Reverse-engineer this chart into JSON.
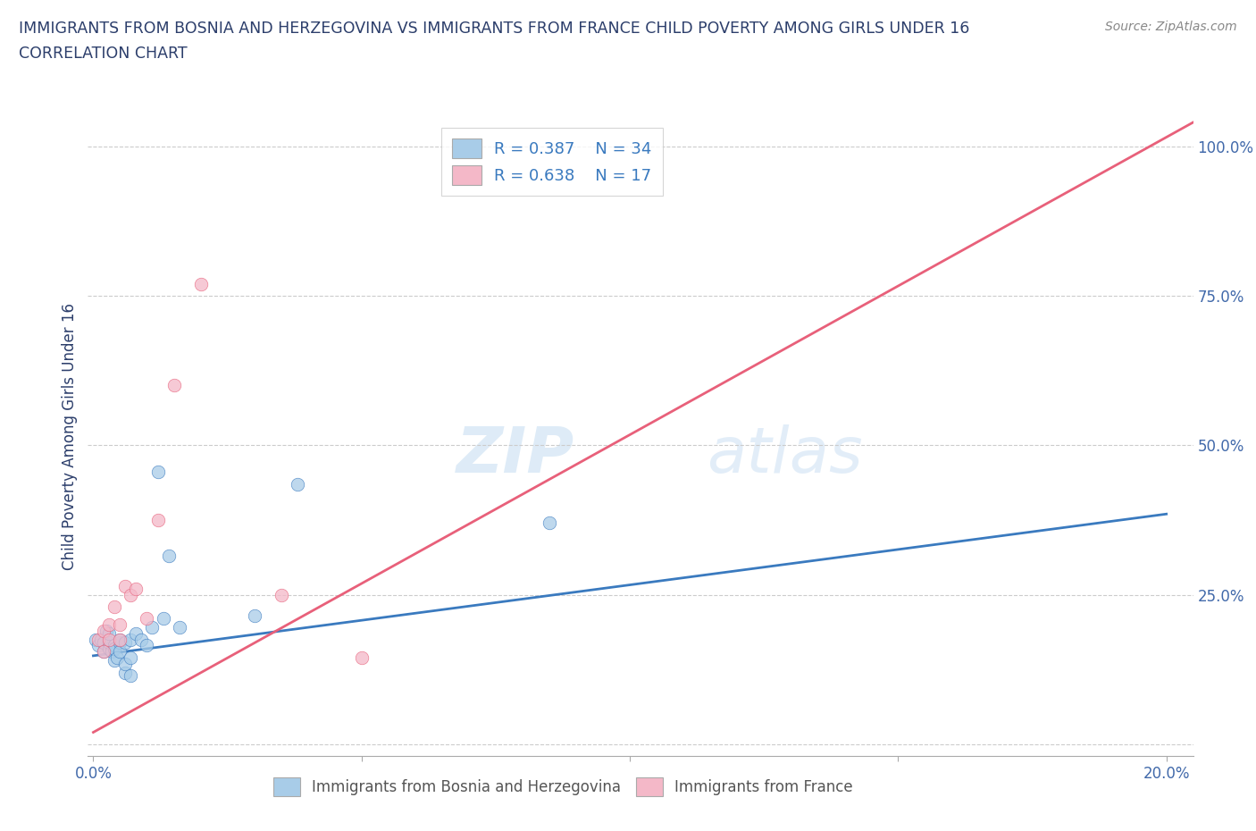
{
  "title_line1": "IMMIGRANTS FROM BOSNIA AND HERZEGOVINA VS IMMIGRANTS FROM FRANCE CHILD POVERTY AMONG GIRLS UNDER 16",
  "title_line2": "CORRELATION CHART",
  "source": "Source: ZipAtlas.com",
  "ylabel": "Child Poverty Among Girls Under 16",
  "xlim": [
    -0.001,
    0.205
  ],
  "ylim": [
    -0.02,
    1.05
  ],
  "color_blue": "#a8cce8",
  "color_pink": "#f4b8c8",
  "color_line_blue": "#3a7abf",
  "color_line_pink": "#e8607a",
  "color_title": "#2c3e6b",
  "color_axis_labels": "#4169aa",
  "color_source": "#888888",
  "watermark_zip": "ZIP",
  "watermark_atlas": "atlas",
  "bosnia_x": [
    0.0005,
    0.001,
    0.0015,
    0.002,
    0.002,
    0.0025,
    0.003,
    0.003,
    0.003,
    0.0035,
    0.004,
    0.004,
    0.004,
    0.0045,
    0.005,
    0.005,
    0.005,
    0.006,
    0.006,
    0.006,
    0.007,
    0.007,
    0.007,
    0.008,
    0.009,
    0.01,
    0.011,
    0.012,
    0.013,
    0.014,
    0.016,
    0.03,
    0.038,
    0.085
  ],
  "bosnia_y": [
    0.175,
    0.165,
    0.175,
    0.155,
    0.17,
    0.19,
    0.16,
    0.17,
    0.185,
    0.155,
    0.14,
    0.165,
    0.16,
    0.145,
    0.17,
    0.155,
    0.175,
    0.12,
    0.135,
    0.17,
    0.115,
    0.175,
    0.145,
    0.185,
    0.175,
    0.165,
    0.195,
    0.455,
    0.21,
    0.315,
    0.195,
    0.215,
    0.435,
    0.37
  ],
  "france_x": [
    0.001,
    0.002,
    0.002,
    0.003,
    0.003,
    0.004,
    0.005,
    0.005,
    0.006,
    0.007,
    0.008,
    0.01,
    0.012,
    0.015,
    0.02,
    0.035,
    0.05
  ],
  "france_y": [
    0.175,
    0.155,
    0.19,
    0.2,
    0.175,
    0.23,
    0.175,
    0.2,
    0.265,
    0.25,
    0.26,
    0.21,
    0.375,
    0.6,
    0.77,
    0.25,
    0.145
  ],
  "blue_trend_x": [
    0.0,
    0.2
  ],
  "blue_trend_y": [
    0.148,
    0.385
  ],
  "pink_trend_x": [
    0.0,
    0.205
  ],
  "pink_trend_y": [
    0.02,
    1.04
  ]
}
